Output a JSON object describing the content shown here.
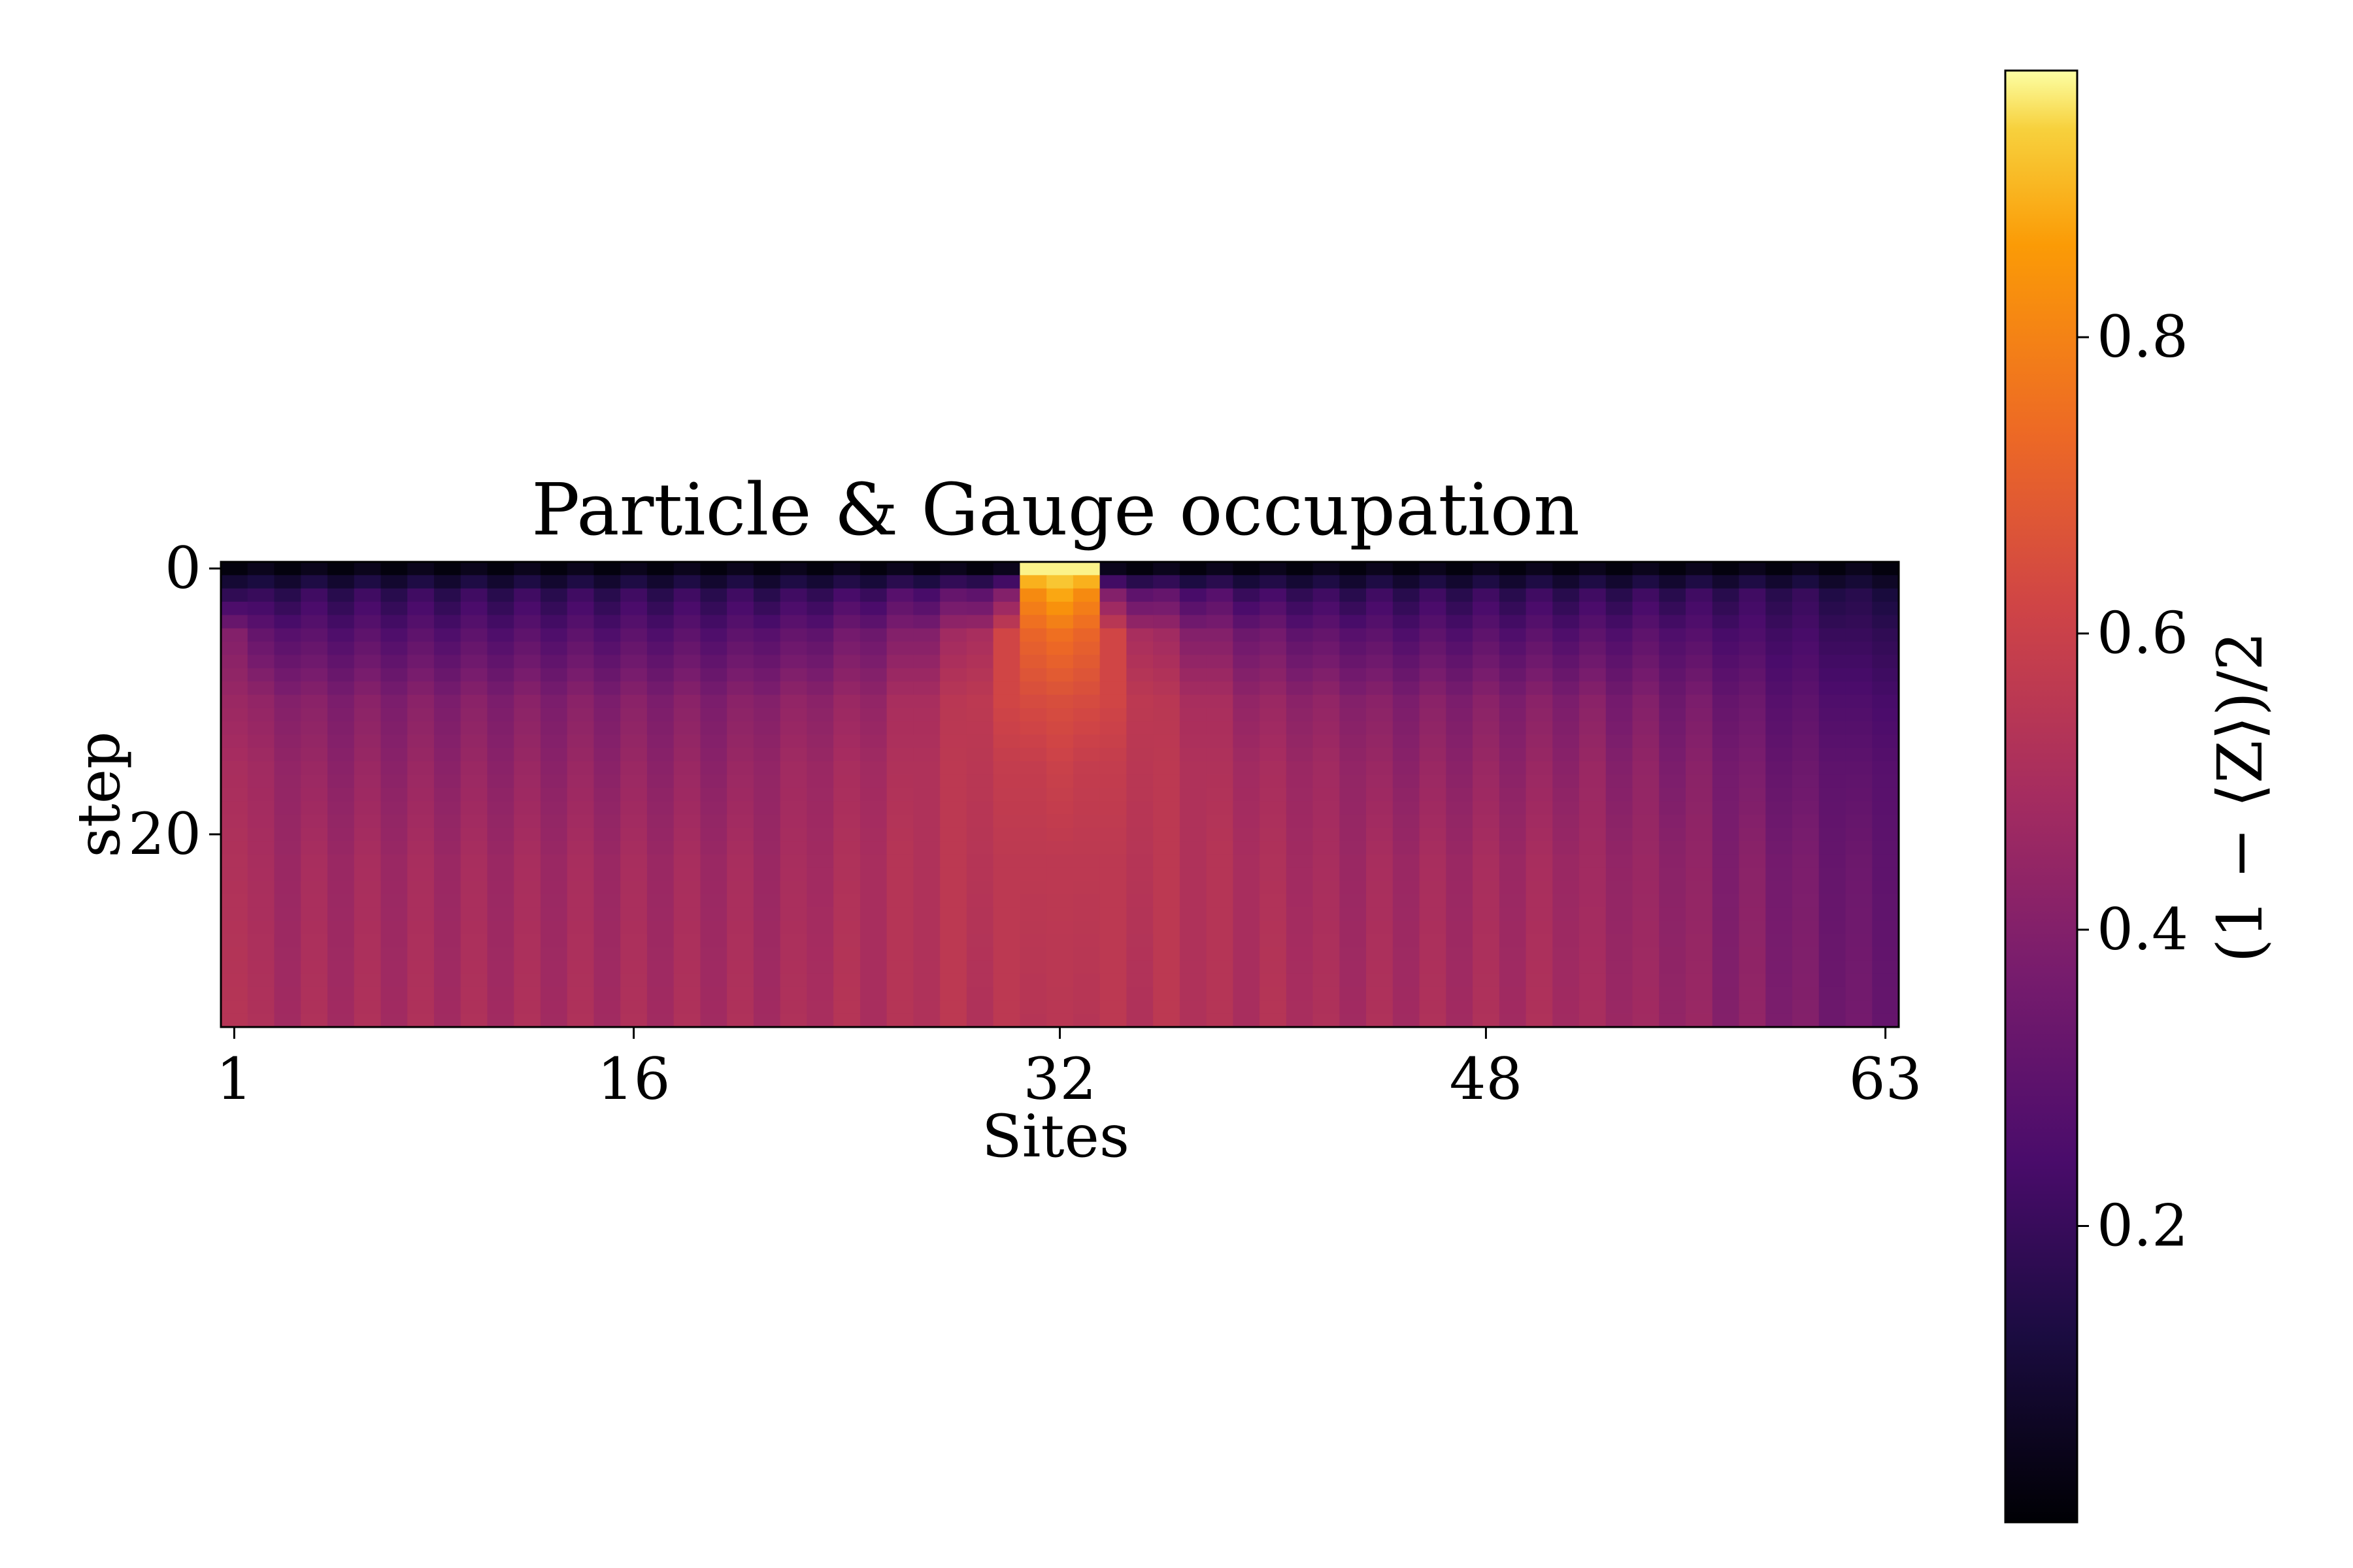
{
  "chart_data": {
    "type": "heatmap",
    "title": "Particle & Gauge occupation",
    "xlabel": "Sites",
    "ylabel": "step",
    "colorbar_label": "(1 − ⟨Z⟩)/2",
    "colormap": "inferno",
    "x_ticks": [
      1,
      16,
      32,
      48,
      63
    ],
    "y_ticks": [
      0,
      20
    ],
    "colorbar_ticks": [
      0.2,
      0.4,
      0.6,
      0.8
    ],
    "x_range": [
      1,
      63
    ],
    "y_range": [
      0,
      34
    ],
    "color_range": [
      0.0,
      0.98
    ],
    "n_sites": 63,
    "n_steps": 35,
    "grid": false,
    "rows": [
      {
        "step": 0,
        "values": [
          0.02,
          0.05,
          0.02,
          0.05,
          0.02,
          0.05,
          0.02,
          0.05,
          0.02,
          0.05,
          0.02,
          0.05,
          0.02,
          0.05,
          0.02,
          0.05,
          0.02,
          0.05,
          0.02,
          0.05,
          0.02,
          0.05,
          0.02,
          0.05,
          0.02,
          0.05,
          0.02,
          0.05,
          0.02,
          0.05,
          0.97,
          0.97,
          0.97,
          0.05,
          0.02,
          0.05,
          0.02,
          0.05,
          0.02,
          0.05,
          0.02,
          0.05,
          0.02,
          0.05,
          0.02,
          0.05,
          0.02,
          0.05,
          0.02,
          0.05,
          0.02,
          0.05,
          0.02,
          0.05,
          0.02,
          0.05,
          0.02,
          0.05,
          0.02,
          0.05,
          0.02,
          0.05,
          0.02
        ]
      },
      {
        "step": 2,
        "values": [
          0.18,
          0.2,
          0.16,
          0.22,
          0.16,
          0.22,
          0.16,
          0.22,
          0.16,
          0.22,
          0.16,
          0.22,
          0.16,
          0.22,
          0.16,
          0.22,
          0.16,
          0.22,
          0.16,
          0.22,
          0.16,
          0.22,
          0.18,
          0.24,
          0.2,
          0.28,
          0.24,
          0.32,
          0.3,
          0.4,
          0.82,
          0.88,
          0.82,
          0.4,
          0.3,
          0.32,
          0.24,
          0.28,
          0.2,
          0.24,
          0.18,
          0.22,
          0.16,
          0.22,
          0.16,
          0.22,
          0.16,
          0.22,
          0.16,
          0.22,
          0.16,
          0.22,
          0.16,
          0.22,
          0.16,
          0.22,
          0.16,
          0.22,
          0.16,
          0.2,
          0.14,
          0.16,
          0.12
        ]
      },
      {
        "step": 5,
        "values": [
          0.4,
          0.32,
          0.28,
          0.3,
          0.26,
          0.3,
          0.26,
          0.3,
          0.26,
          0.3,
          0.26,
          0.3,
          0.26,
          0.3,
          0.26,
          0.3,
          0.26,
          0.3,
          0.26,
          0.3,
          0.28,
          0.32,
          0.3,
          0.36,
          0.34,
          0.4,
          0.4,
          0.48,
          0.5,
          0.62,
          0.72,
          0.75,
          0.72,
          0.62,
          0.5,
          0.48,
          0.4,
          0.4,
          0.34,
          0.36,
          0.3,
          0.32,
          0.28,
          0.3,
          0.26,
          0.3,
          0.26,
          0.3,
          0.26,
          0.3,
          0.26,
          0.3,
          0.26,
          0.3,
          0.26,
          0.28,
          0.24,
          0.26,
          0.22,
          0.24,
          0.2,
          0.2,
          0.18
        ]
      },
      {
        "step": 10,
        "values": [
          0.46,
          0.44,
          0.4,
          0.42,
          0.38,
          0.42,
          0.38,
          0.42,
          0.38,
          0.42,
          0.38,
          0.42,
          0.38,
          0.42,
          0.38,
          0.42,
          0.38,
          0.42,
          0.38,
          0.42,
          0.4,
          0.44,
          0.42,
          0.46,
          0.44,
          0.5,
          0.5,
          0.55,
          0.56,
          0.62,
          0.64,
          0.65,
          0.64,
          0.62,
          0.56,
          0.55,
          0.5,
          0.5,
          0.44,
          0.46,
          0.42,
          0.44,
          0.4,
          0.42,
          0.38,
          0.42,
          0.38,
          0.42,
          0.38,
          0.42,
          0.38,
          0.42,
          0.36,
          0.4,
          0.34,
          0.38,
          0.32,
          0.34,
          0.28,
          0.3,
          0.26,
          0.26,
          0.24
        ]
      },
      {
        "step": 15,
        "values": [
          0.5,
          0.48,
          0.44,
          0.46,
          0.42,
          0.46,
          0.42,
          0.46,
          0.42,
          0.46,
          0.42,
          0.46,
          0.42,
          0.46,
          0.42,
          0.46,
          0.42,
          0.46,
          0.42,
          0.46,
          0.44,
          0.48,
          0.46,
          0.5,
          0.48,
          0.52,
          0.52,
          0.56,
          0.55,
          0.58,
          0.58,
          0.6,
          0.58,
          0.58,
          0.55,
          0.56,
          0.52,
          0.52,
          0.48,
          0.5,
          0.46,
          0.48,
          0.44,
          0.46,
          0.42,
          0.46,
          0.42,
          0.46,
          0.42,
          0.46,
          0.42,
          0.46,
          0.4,
          0.44,
          0.38,
          0.42,
          0.36,
          0.38,
          0.32,
          0.34,
          0.3,
          0.3,
          0.28
        ]
      },
      {
        "step": 22,
        "values": [
          0.52,
          0.5,
          0.46,
          0.5,
          0.46,
          0.5,
          0.46,
          0.5,
          0.46,
          0.5,
          0.46,
          0.5,
          0.46,
          0.5,
          0.46,
          0.5,
          0.46,
          0.5,
          0.46,
          0.5,
          0.46,
          0.5,
          0.48,
          0.52,
          0.5,
          0.54,
          0.52,
          0.56,
          0.54,
          0.56,
          0.56,
          0.56,
          0.56,
          0.56,
          0.54,
          0.56,
          0.52,
          0.54,
          0.5,
          0.52,
          0.48,
          0.5,
          0.46,
          0.5,
          0.46,
          0.5,
          0.46,
          0.5,
          0.46,
          0.5,
          0.46,
          0.48,
          0.44,
          0.46,
          0.42,
          0.44,
          0.38,
          0.42,
          0.36,
          0.38,
          0.32,
          0.34,
          0.3
        ]
      },
      {
        "step": 34,
        "values": [
          0.54,
          0.52,
          0.48,
          0.52,
          0.48,
          0.52,
          0.48,
          0.52,
          0.48,
          0.52,
          0.48,
          0.52,
          0.48,
          0.52,
          0.48,
          0.52,
          0.48,
          0.52,
          0.48,
          0.52,
          0.48,
          0.52,
          0.5,
          0.54,
          0.5,
          0.54,
          0.52,
          0.56,
          0.52,
          0.56,
          0.54,
          0.55,
          0.54,
          0.56,
          0.52,
          0.56,
          0.52,
          0.54,
          0.5,
          0.54,
          0.5,
          0.52,
          0.48,
          0.52,
          0.48,
          0.52,
          0.48,
          0.52,
          0.48,
          0.52,
          0.48,
          0.5,
          0.46,
          0.48,
          0.44,
          0.46,
          0.4,
          0.44,
          0.38,
          0.4,
          0.34,
          0.36,
          0.32
        ]
      }
    ]
  }
}
